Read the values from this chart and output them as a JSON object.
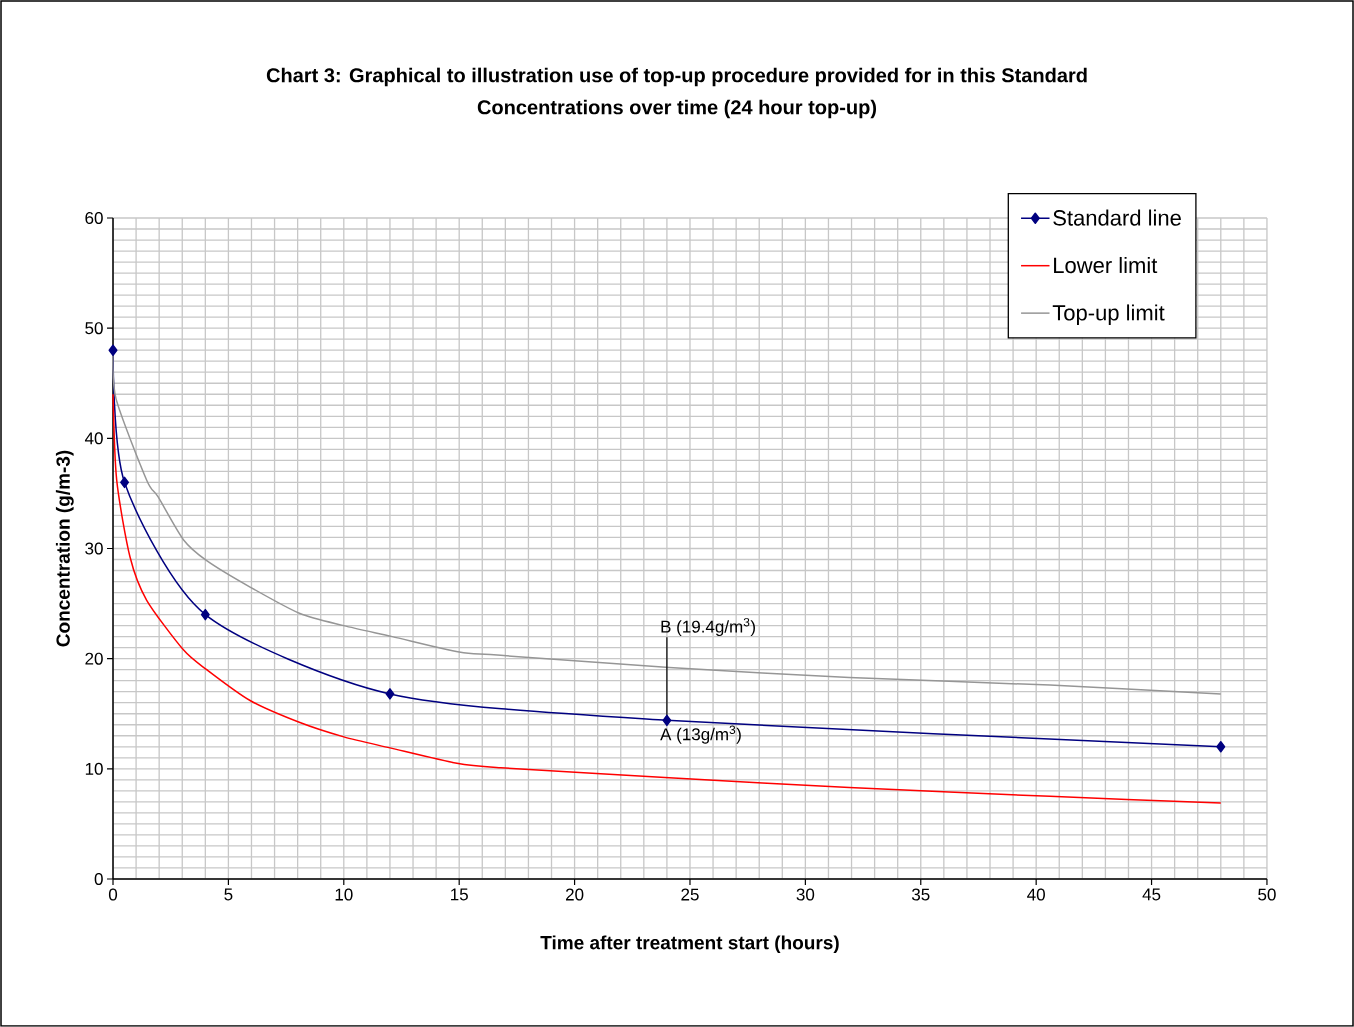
{
  "chart_data": {
    "type": "line",
    "title": "Chart 3: Graphical to illustration use of top-up procedure provided for in this Standard",
    "subtitle": "Concentrations over time (24 hour top-up)",
    "xlabel": "Time after treatment start (hours)",
    "ylabel": "Concentration (g/m-3)",
    "xlim": [
      0,
      50
    ],
    "ylim": [
      0,
      60
    ],
    "xticks": [
      0,
      5,
      10,
      15,
      20,
      25,
      30,
      35,
      40,
      45,
      50
    ],
    "yticks": [
      0,
      10,
      20,
      30,
      40,
      50,
      60
    ],
    "grid": true,
    "legend": "top right",
    "series": [
      {
        "name": "Standard line",
        "color": "#000080",
        "marker": "diamond",
        "x": [
          0,
          0.5,
          4,
          12,
          24,
          48
        ],
        "values": [
          48,
          36,
          24,
          16.8,
          14.4,
          12
        ]
      },
      {
        "name": "Lower limit",
        "color": "#ff0000",
        "marker": "none",
        "x": [
          0,
          0.16,
          0.74,
          1.46,
          3.05,
          4.06,
          5.94,
          8.1,
          10,
          12,
          14.9,
          16.8,
          24.1,
          31.9,
          40.6,
          48
        ],
        "values": [
          44,
          36.2,
          29.2,
          25.3,
          20.8,
          19,
          16.2,
          14.2,
          12.9,
          11.9,
          10.5,
          10.1,
          9.2,
          8.3,
          7.5,
          6.9
        ]
      },
      {
        "name": "Top-up limit",
        "color": "#969696",
        "marker": "none",
        "x": [
          0,
          0.13,
          1.46,
          1.95,
          3.05,
          4.06,
          5.94,
          8.1,
          10,
          12.1,
          15,
          16.8,
          24.1,
          31.9,
          40.6,
          48
        ],
        "values": [
          48,
          43.6,
          36.2,
          34.7,
          30.8,
          28.9,
          26.5,
          24.1,
          23,
          22,
          20.6,
          20.3,
          19.2,
          18.3,
          17.6,
          16.8
        ]
      }
    ],
    "annotations": [
      {
        "text": "A (13g/m$^{3}$)",
        "x": 24,
        "y": 14.4
      },
      {
        "text": "B (19.4g/m$^{3}$)",
        "x": 24,
        "y": 19.4
      }
    ]
  }
}
